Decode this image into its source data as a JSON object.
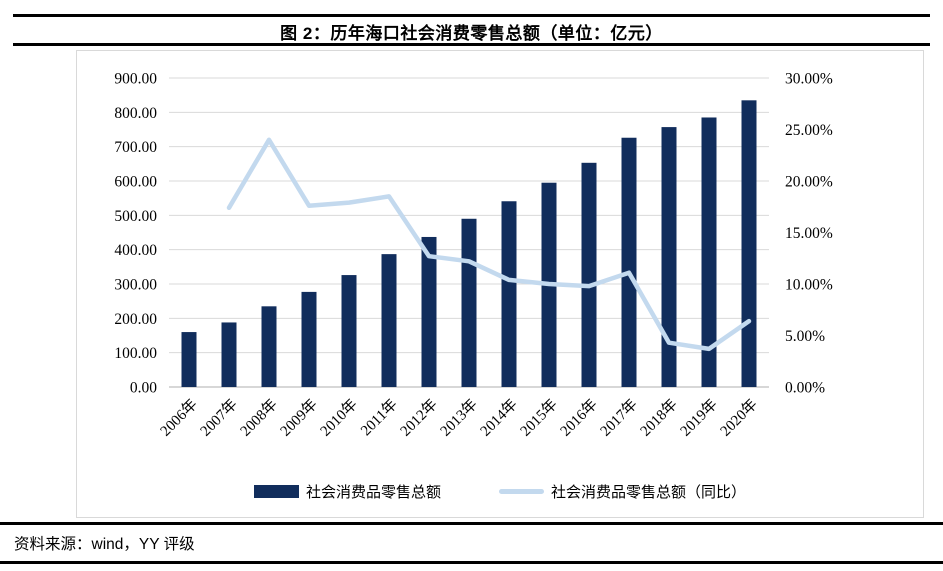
{
  "header": {
    "title": "图 2：历年海口社会消费零售总额（单位：亿元）"
  },
  "footer": {
    "source": "资料来源：wind，YY 评级"
  },
  "chart_data": {
    "type": "bar",
    "subtype": "combo-bar-line-dual-axis",
    "title": "图 2：历年海口社会消费零售总额（单位：亿元）",
    "categories": [
      "2006年",
      "2007年",
      "2008年",
      "2009年",
      "2010年",
      "2011年",
      "2012年",
      "2013年",
      "2014年",
      "2015年",
      "2016年",
      "2017年",
      "2018年",
      "2019年",
      "2020年"
    ],
    "series": [
      {
        "name": "社会消费品零售总额",
        "chart_type": "bar",
        "axis": "left",
        "unit": "亿元",
        "color": "#112d5c",
        "values": [
          160,
          188,
          235,
          277,
          326,
          387,
          437,
          490,
          541,
          595,
          653,
          726,
          757,
          785,
          835
        ]
      },
      {
        "name": "社会消费品零售总额（同比）",
        "chart_type": "line",
        "axis": "right",
        "unit": "%",
        "color": "#c3d9ee",
        "values": [
          null,
          17.4,
          24.0,
          17.6,
          17.9,
          18.5,
          12.7,
          12.2,
          10.4,
          10.0,
          9.8,
          11.1,
          4.3,
          3.7,
          6.4
        ]
      }
    ],
    "left_axis": {
      "min": 0,
      "max": 900,
      "step": 100,
      "labels": [
        "0.00",
        "100.00",
        "200.00",
        "300.00",
        "400.00",
        "500.00",
        "600.00",
        "700.00",
        "800.00",
        "900.00"
      ]
    },
    "right_axis": {
      "min": 0,
      "max": 30,
      "step": 5,
      "labels": [
        "0.00%",
        "5.00%",
        "10.00%",
        "15.00%",
        "20.00%",
        "25.00%",
        "30.00%"
      ]
    },
    "grid": true,
    "legend_position": "bottom"
  },
  "colors": {
    "grid": "#d9d9d9",
    "axis_line": "#bfbfbf",
    "panel_border": "#d9d9d9",
    "rule": "#000000",
    "text": "#000000"
  }
}
